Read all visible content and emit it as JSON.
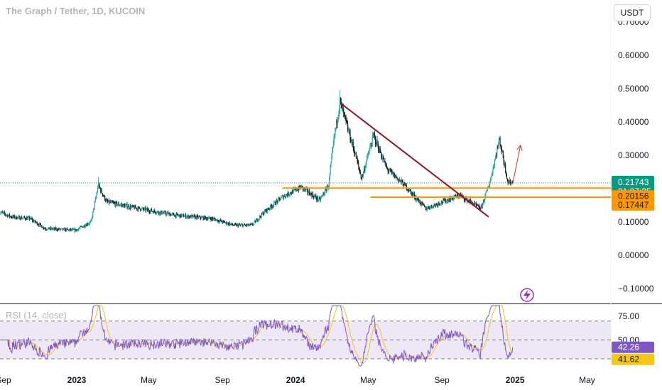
{
  "header": {
    "symbol_title": "The Graph / Tether, 1D, KUCOIN",
    "currency_button": "USDT"
  },
  "colors": {
    "up": "#26a69a",
    "down": "#ef5350",
    "candle_dark": "#131722",
    "orange": "#ff9800",
    "trendline": "#8b1a24",
    "rsi_line": "#7e57c2",
    "rsi_ma": "#f5c518",
    "rsi_band": "#ede7f6",
    "price_tag": "#089981"
  },
  "chart_data": [
    {
      "type": "candlestick",
      "title": "The Graph / Tether, 1D, KUCOIN",
      "y_axis_ticks": [
        "0.70000",
        "0.60000",
        "0.50000",
        "0.40000",
        "0.30000",
        "0.20000",
        "0.10000",
        "0.00000",
        "−0.10000"
      ],
      "y_tick_values": [
        0.7,
        0.6,
        0.5,
        0.4,
        0.3,
        0.2,
        0.1,
        0.0,
        -0.1
      ],
      "ylim": [
        -0.13,
        0.72
      ],
      "x_axis_ticks": [
        "Sep",
        "2023",
        "May",
        "Sep",
        "2024",
        "May",
        "Sep",
        "2025",
        "May"
      ],
      "x_tick_dates": [
        "2022-09-01",
        "2023-01-01",
        "2023-05-01",
        "2023-09-01",
        "2024-01-01",
        "2024-05-01",
        "2024-09-01",
        "2025-01-01",
        "2025-05-01"
      ],
      "price_path": [
        {
          "date": "2022-08-25",
          "close": 0.13
        },
        {
          "date": "2022-09-15",
          "close": 0.115
        },
        {
          "date": "2022-10-15",
          "close": 0.11
        },
        {
          "date": "2022-11-10",
          "close": 0.08
        },
        {
          "date": "2022-12-30",
          "close": 0.075
        },
        {
          "date": "2023-01-25",
          "close": 0.1
        },
        {
          "date": "2023-02-06",
          "close": 0.21
        },
        {
          "date": "2023-02-20",
          "close": 0.16
        },
        {
          "date": "2023-04-01",
          "close": 0.145
        },
        {
          "date": "2023-06-15",
          "close": 0.12
        },
        {
          "date": "2023-08-15",
          "close": 0.11
        },
        {
          "date": "2023-09-20",
          "close": 0.09
        },
        {
          "date": "2023-10-20",
          "close": 0.09
        },
        {
          "date": "2023-11-10",
          "close": 0.13
        },
        {
          "date": "2023-12-10",
          "close": 0.175
        },
        {
          "date": "2024-01-10",
          "close": 0.205
        },
        {
          "date": "2024-02-10",
          "close": 0.165
        },
        {
          "date": "2024-02-25",
          "close": 0.21
        },
        {
          "date": "2024-03-05",
          "close": 0.35
        },
        {
          "date": "2024-03-15",
          "close": 0.46
        },
        {
          "date": "2024-04-10",
          "close": 0.3
        },
        {
          "date": "2024-04-20",
          "close": 0.23
        },
        {
          "date": "2024-05-10",
          "close": 0.36
        },
        {
          "date": "2024-06-01",
          "close": 0.26
        },
        {
          "date": "2024-07-01",
          "close": 0.21
        },
        {
          "date": "2024-08-05",
          "close": 0.14
        },
        {
          "date": "2024-09-01",
          "close": 0.16
        },
        {
          "date": "2024-10-01",
          "close": 0.18
        },
        {
          "date": "2024-11-05",
          "close": 0.14
        },
        {
          "date": "2024-11-20",
          "close": 0.22
        },
        {
          "date": "2024-12-06",
          "close": 0.35
        },
        {
          "date": "2024-12-20",
          "close": 0.22
        },
        {
          "date": "2024-12-28",
          "close": 0.2174
        }
      ],
      "horizontal_levels": [
        {
          "label": "0.20156",
          "value": 0.20156,
          "from_date": "2023-12-10"
        },
        {
          "label": "0.17447",
          "value": 0.17447,
          "from_date": "2024-05-05"
        }
      ],
      "trendline": {
        "from": {
          "date": "2024-03-17",
          "value": 0.455
        },
        "to": {
          "date": "2024-11-18",
          "value": 0.115
        }
      },
      "forecast_arrow": {
        "from": {
          "date": "2024-12-28",
          "value": 0.215
        },
        "to": {
          "date": "2025-01-10",
          "value": 0.33
        }
      },
      "last_price": {
        "value": 0.2174,
        "label": "0.21743",
        "countdown": "01:07:35"
      }
    },
    {
      "type": "line",
      "title": "RSI (14, close)",
      "levels": [
        70,
        50,
        30
      ],
      "visible_ticks": [
        "75.00",
        "50.00"
      ],
      "ylim": [
        25,
        86
      ],
      "series": [
        {
          "name": "RSI",
          "last_label": "42.26",
          "last": 42.26
        },
        {
          "name": "RSI MA",
          "last_label": "41.62",
          "last": 41.62
        }
      ]
    }
  ]
}
